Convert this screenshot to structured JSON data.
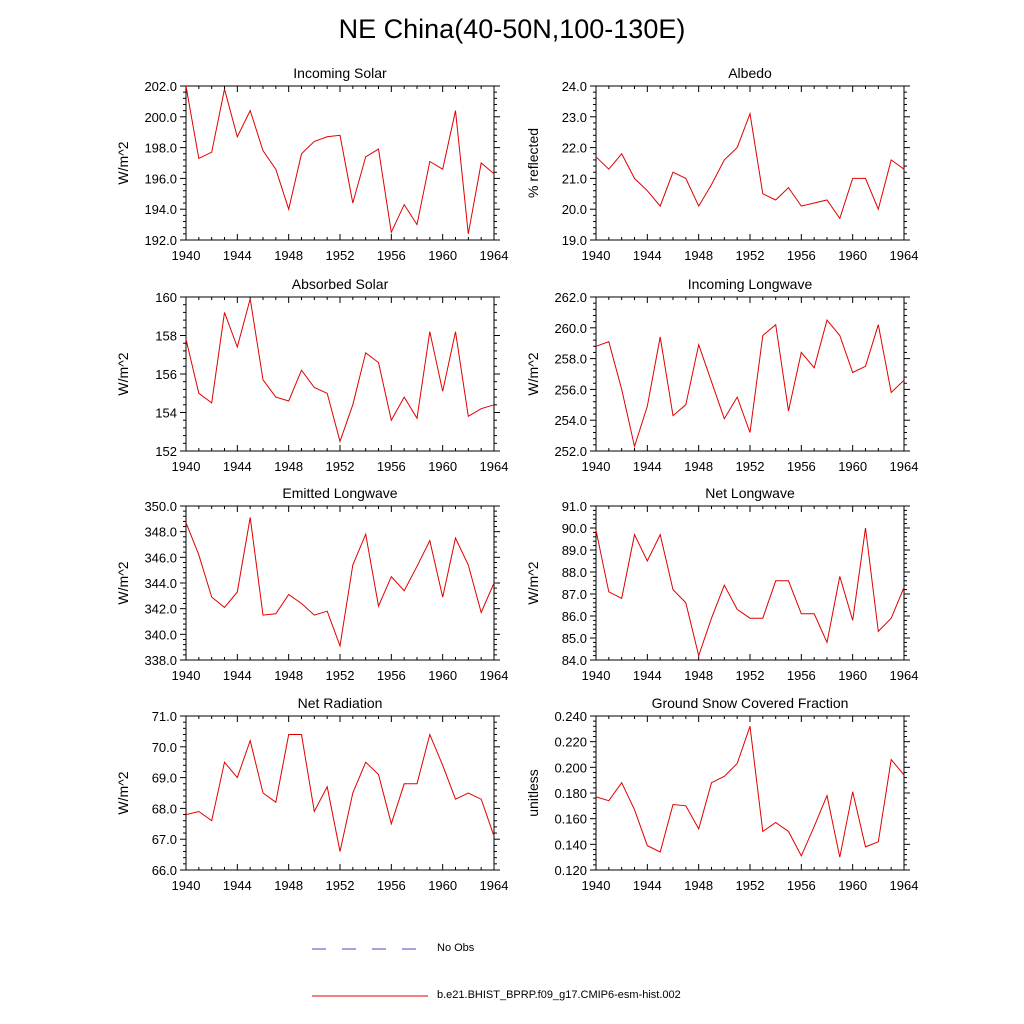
{
  "figure": {
    "title": "NE China(40-50N,100-130E)"
  },
  "legend": {
    "obs_label": "No Obs",
    "model_label": "b.e21.BHIST_BPRP.f09_g17.CMIP6-esm-hist.002",
    "obs_color": "#4a4ab8",
    "model_color": "#e00000"
  },
  "chart_data": [
    {
      "type": "line",
      "title": "Incoming Solar",
      "ylabel": "W/m^2",
      "xlim": [
        1940,
        1964
      ],
      "ylim": [
        192.0,
        202.0
      ],
      "xticks": [
        1940,
        1944,
        1948,
        1952,
        1956,
        1960,
        1964
      ],
      "yticks": [
        "192.0",
        "194.0",
        "196.0",
        "198.0",
        "200.0",
        "202.0"
      ],
      "x": [
        1940,
        1941,
        1942,
        1943,
        1944,
        1945,
        1946,
        1947,
        1948,
        1949,
        1950,
        1951,
        1952,
        1953,
        1954,
        1955,
        1956,
        1957,
        1958,
        1959,
        1960,
        1961,
        1962,
        1963,
        1964
      ],
      "series": [
        {
          "values": [
            202.0,
            197.3,
            197.7,
            201.8,
            198.7,
            200.4,
            197.8,
            196.6,
            194.0,
            197.6,
            198.4,
            198.7,
            198.8,
            194.4,
            197.4,
            197.9,
            192.5,
            194.3,
            193.0,
            197.1,
            196.6,
            200.4,
            192.4,
            197.0,
            196.3
          ]
        }
      ]
    },
    {
      "type": "line",
      "title": "Albedo",
      "ylabel": "% reflected",
      "xlim": [
        1940,
        1964
      ],
      "ylim": [
        19.0,
        24.0
      ],
      "xticks": [
        1940,
        1944,
        1948,
        1952,
        1956,
        1960,
        1964
      ],
      "yticks": [
        "19.0",
        "20.0",
        "21.0",
        "22.0",
        "23.0",
        "24.0"
      ],
      "x": [
        1940,
        1941,
        1942,
        1943,
        1944,
        1945,
        1946,
        1947,
        1948,
        1949,
        1950,
        1951,
        1952,
        1953,
        1954,
        1955,
        1956,
        1957,
        1958,
        1959,
        1960,
        1961,
        1962,
        1963,
        1964
      ],
      "series": [
        {
          "values": [
            21.7,
            21.3,
            21.8,
            21.0,
            20.6,
            20.1,
            21.2,
            21.0,
            20.1,
            20.8,
            21.6,
            22.0,
            23.1,
            20.5,
            20.3,
            20.7,
            20.1,
            20.2,
            20.3,
            19.7,
            21.0,
            21.0,
            20.0,
            21.6,
            21.3
          ]
        }
      ]
    },
    {
      "type": "line",
      "title": "Absorbed Solar",
      "ylabel": "W/m^2",
      "xlim": [
        1940,
        1964
      ],
      "ylim": [
        152,
        160
      ],
      "xticks": [
        1940,
        1944,
        1948,
        1952,
        1956,
        1960,
        1964
      ],
      "yticks": [
        "152",
        "154",
        "156",
        "158",
        "160"
      ],
      "x": [
        1940,
        1941,
        1942,
        1943,
        1944,
        1945,
        1946,
        1947,
        1948,
        1949,
        1950,
        1951,
        1952,
        1953,
        1954,
        1955,
        1956,
        1957,
        1958,
        1959,
        1960,
        1961,
        1962,
        1963,
        1964
      ],
      "series": [
        {
          "values": [
            157.8,
            155.0,
            154.5,
            159.2,
            157.4,
            159.9,
            155.7,
            154.8,
            154.6,
            156.2,
            155.3,
            155.0,
            152.5,
            154.4,
            157.1,
            156.6,
            153.6,
            154.8,
            153.7,
            158.2,
            155.1,
            158.2,
            153.8,
            154.2,
            154.4
          ]
        }
      ]
    },
    {
      "type": "line",
      "title": "Incoming Longwave",
      "ylabel": "W/m^2",
      "xlim": [
        1940,
        1964
      ],
      "ylim": [
        252.0,
        262.0
      ],
      "xticks": [
        1940,
        1944,
        1948,
        1952,
        1956,
        1960,
        1964
      ],
      "yticks": [
        "252.0",
        "254.0",
        "256.0",
        "258.0",
        "260.0",
        "262.0"
      ],
      "x": [
        1940,
        1941,
        1942,
        1943,
        1944,
        1945,
        1946,
        1947,
        1948,
        1949,
        1950,
        1951,
        1952,
        1953,
        1954,
        1955,
        1956,
        1957,
        1958,
        1959,
        1960,
        1961,
        1962,
        1963,
        1964
      ],
      "series": [
        {
          "values": [
            258.8,
            259.1,
            256.0,
            252.3,
            254.9,
            259.4,
            254.3,
            255.0,
            258.9,
            256.5,
            254.1,
            255.5,
            253.2,
            259.5,
            260.2,
            254.6,
            258.4,
            257.4,
            260.5,
            259.5,
            257.1,
            257.5,
            260.2,
            255.8,
            256.6
          ]
        }
      ]
    },
    {
      "type": "line",
      "title": "Emitted Longwave",
      "ylabel": "W/m^2",
      "xlim": [
        1940,
        1964
      ],
      "ylim": [
        338.0,
        350.0
      ],
      "xticks": [
        1940,
        1944,
        1948,
        1952,
        1956,
        1960,
        1964
      ],
      "yticks": [
        "338.0",
        "340.0",
        "342.0",
        "344.0",
        "346.0",
        "348.0",
        "350.0"
      ],
      "x": [
        1940,
        1941,
        1942,
        1943,
        1944,
        1945,
        1946,
        1947,
        1948,
        1949,
        1950,
        1951,
        1952,
        1953,
        1954,
        1955,
        1956,
        1957,
        1958,
        1959,
        1960,
        1961,
        1962,
        1963,
        1964
      ],
      "series": [
        {
          "values": [
            348.7,
            346.2,
            342.9,
            342.1,
            343.3,
            349.1,
            341.5,
            341.6,
            343.1,
            342.4,
            341.5,
            341.8,
            339.1,
            345.4,
            347.8,
            342.2,
            344.5,
            343.4,
            345.3,
            347.3,
            342.9,
            347.5,
            345.4,
            341.7,
            344.0
          ]
        }
      ]
    },
    {
      "type": "line",
      "title": "Net Longwave",
      "ylabel": "W/m^2",
      "xlim": [
        1940,
        1964
      ],
      "ylim": [
        84.0,
        91.0
      ],
      "xticks": [
        1940,
        1944,
        1948,
        1952,
        1956,
        1960,
        1964
      ],
      "yticks": [
        "84.0",
        "85.0",
        "86.0",
        "87.0",
        "88.0",
        "89.0",
        "90.0",
        "91.0"
      ],
      "x": [
        1940,
        1941,
        1942,
        1943,
        1944,
        1945,
        1946,
        1947,
        1948,
        1949,
        1950,
        1951,
        1952,
        1953,
        1954,
        1955,
        1956,
        1957,
        1958,
        1959,
        1960,
        1961,
        1962,
        1963,
        1964
      ],
      "series": [
        {
          "values": [
            89.9,
            87.1,
            86.8,
            89.7,
            88.5,
            89.7,
            87.2,
            86.6,
            84.2,
            85.9,
            87.4,
            86.3,
            85.9,
            85.9,
            87.6,
            87.6,
            86.1,
            86.1,
            84.8,
            87.8,
            85.8,
            90.0,
            85.3,
            85.9,
            87.3
          ]
        }
      ]
    },
    {
      "type": "line",
      "title": "Net Radiation",
      "ylabel": "W/m^2",
      "xlim": [
        1940,
        1964
      ],
      "ylim": [
        66.0,
        71.0
      ],
      "xticks": [
        1940,
        1944,
        1948,
        1952,
        1956,
        1960,
        1964
      ],
      "yticks": [
        "66.0",
        "67.0",
        "68.0",
        "69.0",
        "70.0",
        "71.0"
      ],
      "x": [
        1940,
        1941,
        1942,
        1943,
        1944,
        1945,
        1946,
        1947,
        1948,
        1949,
        1950,
        1951,
        1952,
        1953,
        1954,
        1955,
        1956,
        1957,
        1958,
        1959,
        1960,
        1961,
        1962,
        1963,
        1964
      ],
      "series": [
        {
          "values": [
            67.8,
            67.9,
            67.6,
            69.5,
            69.0,
            70.2,
            68.5,
            68.2,
            70.4,
            70.4,
            67.9,
            68.7,
            66.6,
            68.5,
            69.5,
            69.1,
            67.5,
            68.8,
            68.8,
            70.4,
            69.4,
            68.3,
            68.5,
            68.3,
            67.1
          ]
        }
      ]
    },
    {
      "type": "line",
      "title": "Ground Snow Covered Fraction",
      "ylabel": "unitless",
      "xlim": [
        1940,
        1964
      ],
      "ylim": [
        0.12,
        0.24
      ],
      "xticks": [
        1940,
        1944,
        1948,
        1952,
        1956,
        1960,
        1964
      ],
      "yticks": [
        "0.120",
        "0.140",
        "0.160",
        "0.180",
        "0.200",
        "0.220",
        "0.240"
      ],
      "x": [
        1940,
        1941,
        1942,
        1943,
        1944,
        1945,
        1946,
        1947,
        1948,
        1949,
        1950,
        1951,
        1952,
        1953,
        1954,
        1955,
        1956,
        1957,
        1958,
        1959,
        1960,
        1961,
        1962,
        1963,
        1964
      ],
      "series": [
        {
          "values": [
            0.177,
            0.174,
            0.188,
            0.167,
            0.139,
            0.134,
            0.171,
            0.17,
            0.152,
            0.188,
            0.193,
            0.203,
            0.232,
            0.15,
            0.157,
            0.15,
            0.131,
            0.154,
            0.178,
            0.13,
            0.181,
            0.138,
            0.142,
            0.206,
            0.194
          ]
        }
      ]
    }
  ]
}
